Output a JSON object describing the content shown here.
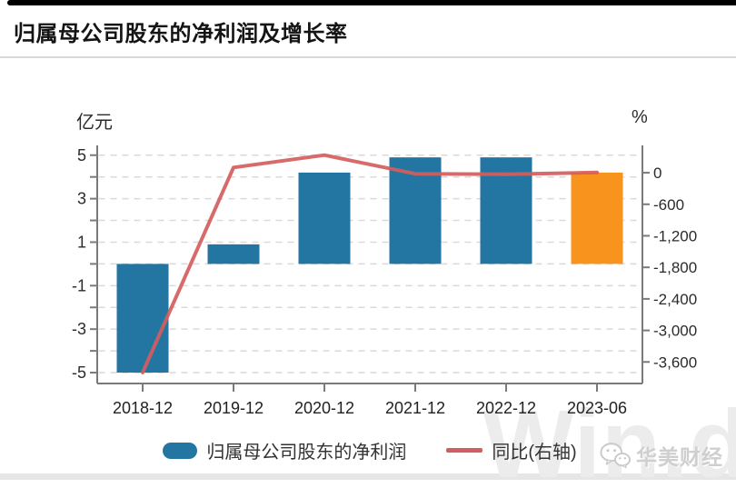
{
  "header": {
    "title": "归属母公司股东的净利润及增长率"
  },
  "chart_data": {
    "type": "bar+line",
    "title": "归属母公司股东的净利润及增长率",
    "categories": [
      "2018-12",
      "2019-12",
      "2020-12",
      "2021-12",
      "2022-12",
      "2023-06"
    ],
    "series": [
      {
        "name": "归属母公司股东的净利润",
        "kind": "bar",
        "axis": "left",
        "unit": "亿元",
        "values": [
          -5.0,
          0.9,
          4.2,
          4.9,
          4.9,
          4.2
        ],
        "bar_colors": [
          "#2376a2",
          "#2376a2",
          "#2376a2",
          "#2376a2",
          "#2376a2",
          "#f8941e"
        ]
      },
      {
        "name": "同比(右轴)",
        "kind": "line",
        "axis": "right",
        "unit": "%",
        "values": [
          -3800,
          100,
          335,
          -20,
          -30,
          5
        ],
        "color": "#d45d5d"
      }
    ],
    "left_axis": {
      "label": "亿元",
      "tick_values": [
        5,
        3,
        1,
        -1,
        -3,
        -5
      ],
      "tick_labels": [
        "5",
        "3",
        "1",
        "-1",
        "-3",
        "-5"
      ],
      "minor_tick_values": [
        4,
        2,
        0,
        -2,
        -4
      ],
      "grid_values": [
        5,
        4,
        3,
        2,
        1,
        0,
        -1,
        -2,
        -3,
        -4,
        -5
      ],
      "range": [
        -5.5,
        5.45
      ]
    },
    "right_axis": {
      "label": "%",
      "tick_values": [
        0,
        -600,
        -1200,
        -1800,
        -2400,
        -3000,
        -3600
      ],
      "tick_labels": [
        "0",
        "-600",
        "-1,200",
        "-1,800",
        "-2,400",
        "-3,000",
        "-3,600"
      ],
      "range": [
        -4010,
        520
      ]
    },
    "legend": {
      "position": "bottom",
      "items": [
        {
          "label": "归属母公司股东的净利润",
          "swatch": "bar",
          "color": "#2376a2"
        },
        {
          "label": "同比(右轴)",
          "swatch": "line",
          "color": "#d45d5d"
        }
      ]
    },
    "grid": true,
    "colors": {
      "bar_default": "#2376a2",
      "bar_highlight": "#f8941e",
      "line": "#d45d5d",
      "gridline": "#d9d9d9",
      "axis": "#7a7a7a",
      "tick_text": "#2b2b2b"
    }
  },
  "branding": {
    "watermark": "Win.d",
    "source_label": "华美财经"
  }
}
